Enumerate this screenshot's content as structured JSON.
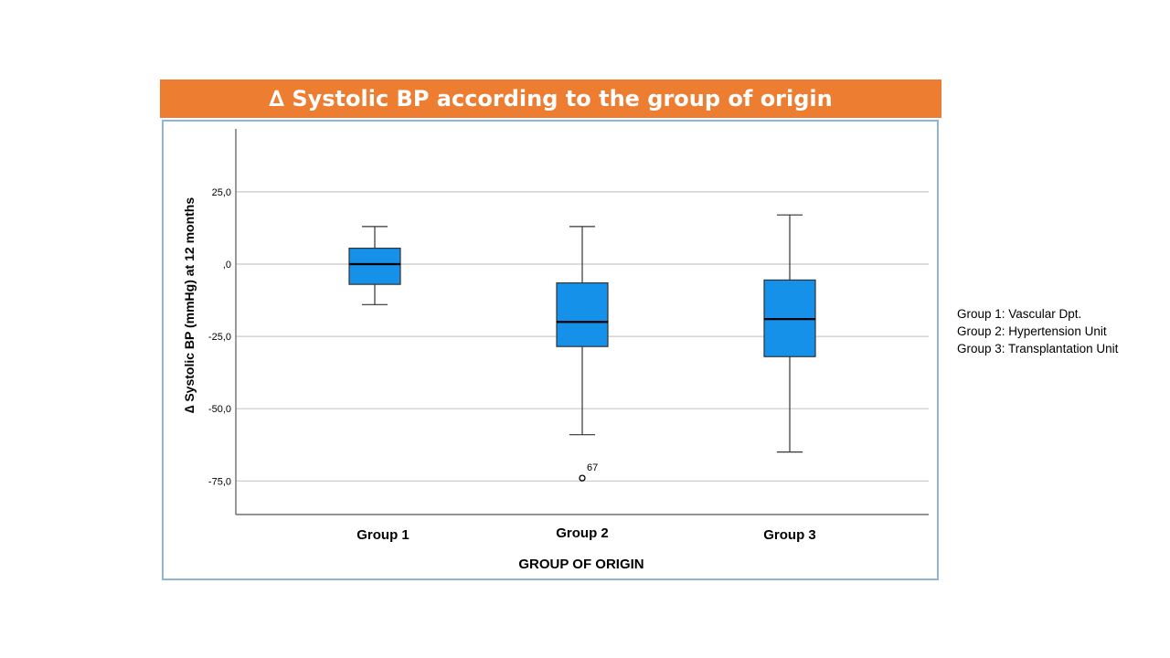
{
  "title": {
    "symbol": "∆",
    "text": "Systolic BP according to the group of origin"
  },
  "legend": [
    "Group 1: Vascular Dpt.",
    "Group 2: Hypertension Unit",
    "Group 3: Transplantation Unit"
  ],
  "colors": {
    "title_bg": "#ED7D31",
    "frame_border": "#8FB4D6",
    "box_fill": "#1591EA",
    "gridline": "#C8C8C8"
  },
  "chart_data": {
    "type": "boxplot",
    "title": "∆ Systolic BP according to the group of origin",
    "xlabel": "GROUP OF ORIGIN",
    "ylabel": "∆  Systolic BP (mmHg) at 12 months",
    "ylim": [
      -87,
      47
    ],
    "yticks": [
      25,
      0,
      -25,
      -50,
      -75
    ],
    "ytick_labels": [
      "25,0",
      ",0",
      "-25,0",
      "-50,0",
      "-75,0"
    ],
    "grid": true,
    "categories": [
      "Group 1",
      "Group 2",
      "Group 3"
    ],
    "boxes": [
      {
        "name": "Group 1",
        "whisker_low": -14,
        "q1": -7,
        "median": 0,
        "q3": 5.5,
        "whisker_high": 13,
        "outliers": []
      },
      {
        "name": "Group 2",
        "whisker_low": -59,
        "q1": -28.5,
        "median": -20,
        "q3": -6.5,
        "whisker_high": 13,
        "outliers": [
          {
            "value": -74,
            "label": "67"
          }
        ]
      },
      {
        "name": "Group 3",
        "whisker_low": -65,
        "q1": -32,
        "median": -19,
        "q3": -5.5,
        "whisker_high": 17,
        "outliers": []
      }
    ]
  }
}
